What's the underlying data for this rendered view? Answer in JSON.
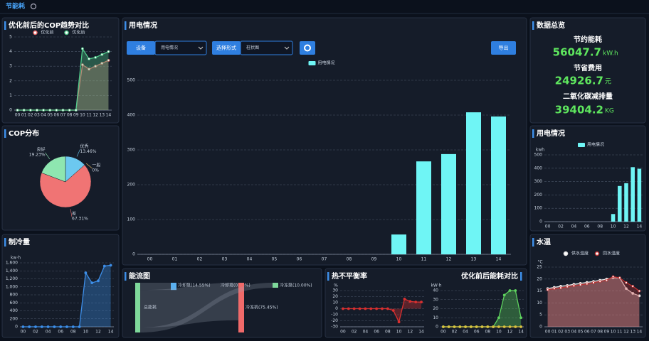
{
  "header": {
    "title": "节能耗"
  },
  "controls": {
    "device_label": "设备",
    "device_value": "用电情况",
    "form_label": "选择形式",
    "form_value": "柱状图",
    "export": "导出"
  },
  "overview": {
    "title": "数据总览",
    "items": [
      {
        "label": "节约能耗",
        "value": "56047.7",
        "unit": "kW.h"
      },
      {
        "label": "节省费用",
        "value": "24926.7",
        "unit": "元"
      },
      {
        "label": "二氧化碳减排量",
        "value": "39404.2",
        "unit": "KG"
      }
    ]
  },
  "chart_data": [
    {
      "type": "line",
      "title": "优化前后的COP趋势对比",
      "categories": [
        "00",
        "01",
        "02",
        "03",
        "04",
        "05",
        "06",
        "07",
        "08",
        "09",
        "10",
        "11",
        "12",
        "13",
        "14"
      ],
      "series": [
        {
          "name": "优化前",
          "color": "#e86a6a",
          "values": [
            0,
            0,
            0,
            0,
            0,
            0,
            0,
            0,
            0,
            0,
            3.1,
            2.8,
            3.0,
            3.2,
            3.4
          ]
        },
        {
          "name": "优化后",
          "color": "#4fc98a",
          "values": [
            0,
            0,
            0,
            0,
            0,
            0,
            0,
            0,
            0,
            0,
            4.2,
            3.5,
            3.6,
            3.8,
            4.0
          ]
        }
      ],
      "ylim": [
        0,
        5
      ],
      "yticks": [
        0,
        1,
        2,
        3,
        4,
        5
      ],
      "grid": true,
      "area": true
    },
    {
      "type": "pie",
      "title": "COP分布",
      "categories": [
        "优秀",
        "一般",
        "差",
        "良好"
      ],
      "values": [
        13.46,
        0,
        67.31,
        19.23
      ],
      "value_labels": [
        "13.46%",
        "0%",
        "67.31%",
        "19.23%"
      ],
      "colors": [
        "#6cc8f0",
        "#f0c060",
        "#f07474",
        "#8ee6b0"
      ]
    },
    {
      "type": "line",
      "title": "制冷量",
      "ylabel": "kw·h",
      "categories": [
        "00",
        null,
        "02",
        null,
        "04",
        null,
        "06",
        null,
        "08",
        null,
        "10",
        null,
        "12",
        null,
        "14"
      ],
      "series": [
        {
          "color": "#3d8ee8",
          "values": [
            0,
            0,
            0,
            0,
            0,
            0,
            0,
            0,
            0,
            0,
            1350,
            1100,
            1150,
            1520,
            1540
          ]
        }
      ],
      "ylim": [
        0,
        1600
      ],
      "yticks": [
        0,
        200,
        400,
        600,
        800,
        {
          "value": 1000,
          "label": "1,000"
        },
        {
          "value": 1200,
          "label": "1,200"
        },
        {
          "value": 1400,
          "label": "1,400"
        },
        {
          "value": 1600,
          "label": "1,600"
        }
      ],
      "grid": true,
      "area": true
    },
    {
      "type": "bar",
      "title": "用电情况",
      "categories": [
        "00",
        "01",
        "02",
        "03",
        "04",
        "05",
        "06",
        "07",
        "08",
        "09",
        "10",
        "11",
        "12",
        "13",
        "14"
      ],
      "series": [
        {
          "name": "用电情况",
          "color": "#6ff5f5",
          "values": [
            0,
            0,
            0,
            0,
            0,
            0,
            0,
            0,
            0,
            0,
            57,
            267,
            288,
            408,
            396
          ]
        }
      ],
      "ylim": [
        0,
        500
      ],
      "yticks": [
        0,
        100,
        200,
        300,
        400,
        500
      ],
      "grid": true
    },
    {
      "type": "sankey",
      "title": "能流图",
      "source": "总能耗",
      "targets": [
        "冷却泵",
        "冷却塔",
        "冷冻机",
        "冷冻泵"
      ],
      "values": [
        14.55,
        0,
        75.45,
        10.0
      ],
      "value_labels": [
        "冷却泵(14.55%)",
        "冷却塔(0.00%)",
        "冷冻机(75.45%)",
        "冷冻泵(10.00%)"
      ],
      "colors": [
        "#5ab0f0",
        "#8a8a8a",
        "#f06a6a",
        "#7ed89a"
      ]
    },
    {
      "type": "line",
      "title": "热不平衡率",
      "ylabel": "%",
      "categories": [
        "00",
        null,
        "02",
        null,
        "04",
        null,
        "06",
        null,
        "08",
        null,
        "10",
        null,
        "12",
        null,
        "14"
      ],
      "series": [
        {
          "color": "#d93030",
          "values": [
            0,
            0,
            0,
            0,
            0,
            0,
            0,
            0,
            0,
            -3,
            -22,
            16,
            12,
            11,
            11
          ]
        }
      ],
      "ylim": [
        -30,
        30
      ],
      "yticks": [
        -30,
        -20,
        -10,
        0,
        10,
        20,
        30
      ],
      "grid": true,
      "area": true
    },
    {
      "type": "line",
      "title": "优化前后能耗对比",
      "ylabel": "kW·h",
      "categories": [
        "00",
        null,
        "02",
        null,
        "04",
        null,
        "06",
        null,
        "08",
        null,
        "10",
        null,
        "12",
        null,
        "14"
      ],
      "series": [
        {
          "color": "#5fd35f",
          "values": [
            0,
            0,
            0,
            0,
            0,
            0,
            0,
            0,
            0,
            0,
            10,
            35,
            40,
            40,
            10
          ]
        },
        {
          "color": "#d8c040",
          "values": [
            0,
            0,
            0,
            0,
            0,
            0,
            0,
            0,
            0,
            0,
            0,
            0,
            0,
            0,
            0
          ]
        }
      ],
      "ylim": [
        0,
        40
      ],
      "yticks": [
        0,
        10,
        20,
        30,
        40
      ],
      "grid": true,
      "area": true
    },
    {
      "type": "bar",
      "title": "用电情况",
      "ylabel": "kwh",
      "categories": [
        "00",
        null,
        "02",
        null,
        "04",
        null,
        "06",
        null,
        "08",
        null,
        "10",
        null,
        "12",
        null,
        "14"
      ],
      "series": [
        {
          "name": "用电情况",
          "color": "#6ff5f5",
          "values": [
            0,
            0,
            0,
            0,
            0,
            0,
            0,
            0,
            0,
            0,
            57,
            267,
            288,
            408,
            396
          ]
        }
      ],
      "ylim": [
        0,
        500
      ],
      "yticks": [
        0,
        100,
        200,
        300,
        400,
        500
      ],
      "grid": true
    },
    {
      "type": "line",
      "title": "水温",
      "ylabel": "°C",
      "categories": [
        "00",
        "01",
        "02",
        "03",
        "04",
        "05",
        "06",
        "07",
        "08",
        "09",
        "10",
        "11",
        "12",
        "13",
        "14"
      ],
      "series": [
        {
          "name": "供水温度",
          "color": "#e6e6e6",
          "values": [
            16,
            16.5,
            17,
            17.3,
            17.8,
            18.2,
            18.6,
            19,
            19.5,
            20,
            20.5,
            20.5,
            16,
            14,
            13
          ]
        },
        {
          "name": "回水温度",
          "color": "#c03030",
          "values": [
            15.5,
            16,
            16.3,
            16.8,
            17.2,
            17.6,
            18,
            18.5,
            19,
            19.5,
            21,
            20.5,
            18.5,
            17,
            15
          ]
        }
      ],
      "ylim": [
        0,
        25
      ],
      "yticks": [
        0,
        5,
        10,
        15,
        20,
        25
      ],
      "grid": true,
      "area": true
    }
  ]
}
